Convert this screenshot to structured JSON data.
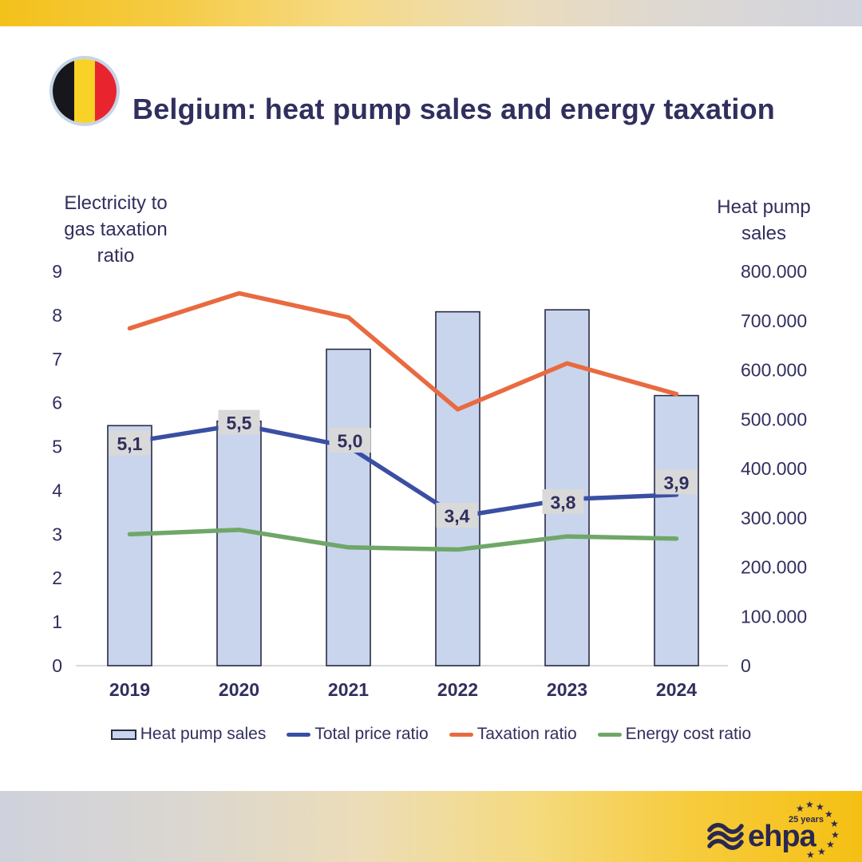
{
  "header": {
    "title": "Belgium: heat pump sales and energy taxation",
    "flag_name": "belgium-flag",
    "flag_colors": [
      "#17161B",
      "#F8D227",
      "#E8242F"
    ]
  },
  "axes": {
    "left_title_lines": [
      "Electricity to",
      "gas taxation",
      "ratio"
    ],
    "right_title_lines": [
      "Heat pump",
      "sales"
    ],
    "left_ticks": [
      "0",
      "1",
      "2",
      "3",
      "4",
      "5",
      "6",
      "7",
      "8",
      "9"
    ],
    "right_ticks": [
      "0",
      "100.000",
      "200.000",
      "300.000",
      "400.000",
      "500.000",
      "600.000",
      "700.000",
      "800.000"
    ]
  },
  "chart_data": {
    "type": "bar+line combo",
    "title": "Belgium: heat pump sales and energy taxation",
    "categories": [
      "2019",
      "2020",
      "2021",
      "2022",
      "2023",
      "2024"
    ],
    "left_axis": {
      "label": "Electricity to gas taxation ratio",
      "min": 0,
      "max": 9,
      "tick_step": 1
    },
    "right_axis": {
      "label": "Heat pump sales",
      "min": 0,
      "max": 800000,
      "tick_step": 100000,
      "tick_format": "dot-thousands"
    },
    "grid": false,
    "legend_position": "bottom",
    "series": [
      {
        "name": "Heat pump sales",
        "type": "bar",
        "axis": "right",
        "fill": "#C8D5EC",
        "stroke": "#2B2B45",
        "values": [
          487000,
          496000,
          642000,
          718000,
          722000,
          548000
        ]
      },
      {
        "name": "Total price ratio",
        "type": "line",
        "axis": "left",
        "color": "#3A4FA3",
        "values": [
          5.1,
          5.5,
          5.0,
          3.4,
          3.8,
          3.9
        ],
        "point_labels": [
          "5,1",
          "5,5",
          "5,0",
          "3,4",
          "3,8",
          "3,9"
        ]
      },
      {
        "name": "Taxation ratio",
        "type": "line",
        "axis": "left",
        "color": "#E96A41",
        "values": [
          7.7,
          8.5,
          7.95,
          5.85,
          6.9,
          6.2
        ]
      },
      {
        "name": "Energy cost ratio",
        "type": "line",
        "axis": "left",
        "color": "#6FA768",
        "values": [
          3.0,
          3.1,
          2.7,
          2.65,
          2.95,
          2.9
        ]
      }
    ]
  },
  "legend": {
    "items": [
      {
        "label": "Heat pump sales",
        "type": "bar",
        "fill": "#C8D5EC",
        "stroke": "#2B2B45"
      },
      {
        "label": "Total price ratio",
        "type": "line",
        "color": "#3A4FA3"
      },
      {
        "label": "Taxation ratio",
        "type": "line",
        "color": "#E96A41"
      },
      {
        "label": "Energy cost ratio",
        "type": "line",
        "color": "#6FA768"
      }
    ]
  },
  "footer": {
    "logo_text": "ehpa",
    "logo_badge": "25 years"
  },
  "colors": {
    "text_navy": "#312F5E",
    "label_box_bg": "#D9D9D9",
    "axis_line": "#D9D9D9",
    "logo_navy": "#2A2851",
    "band_gold": "#F5C013",
    "band_gray": "#D2D4DF"
  }
}
